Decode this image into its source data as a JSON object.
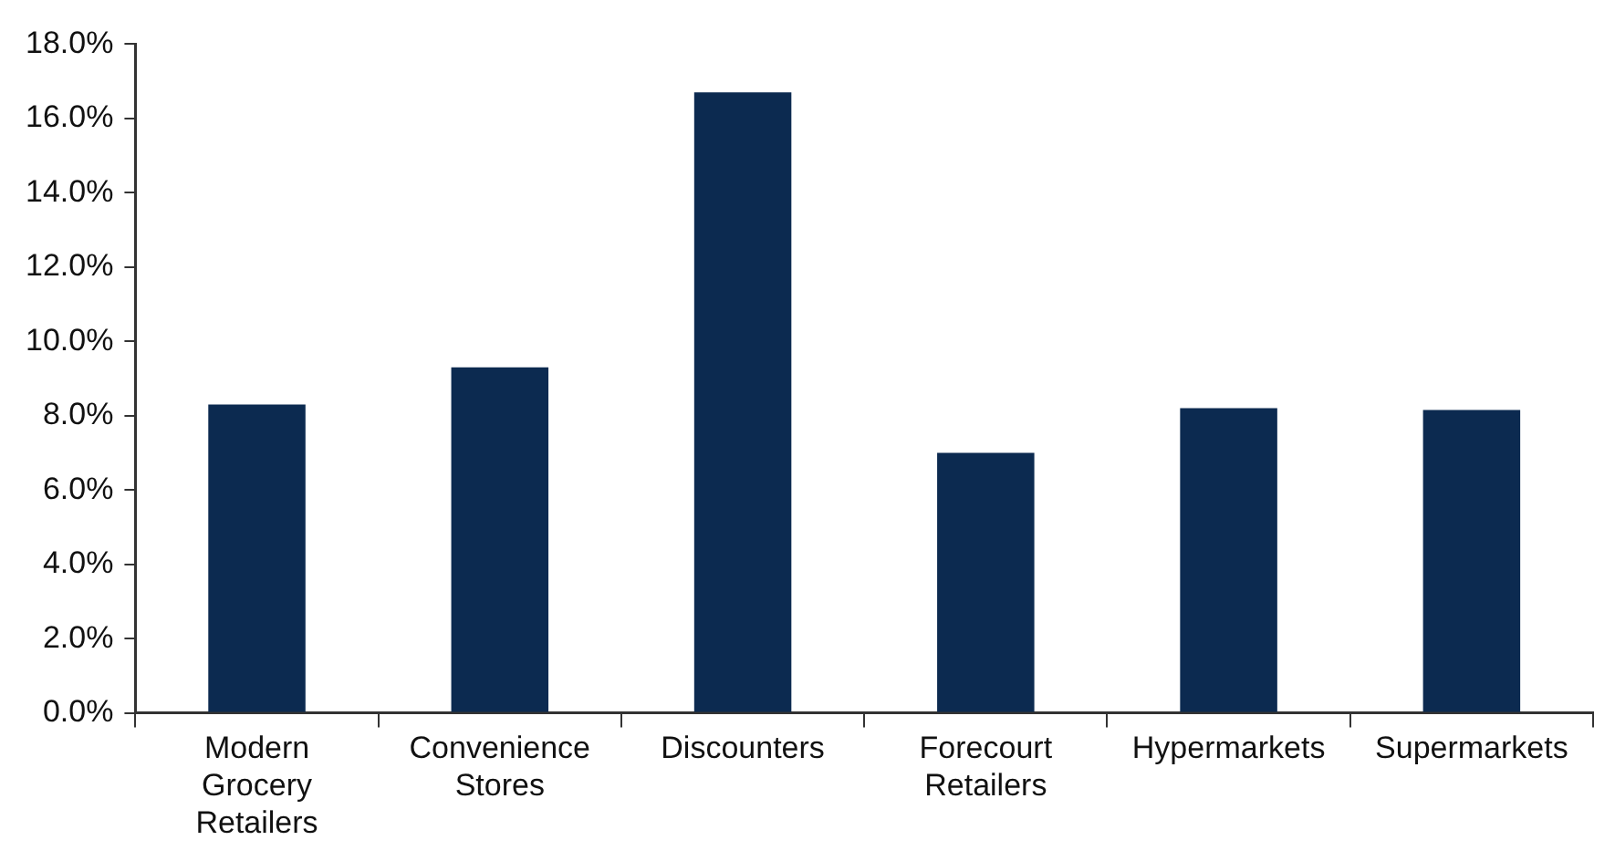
{
  "chart_data": {
    "type": "bar",
    "categories": [
      "Modern Grocery Retailers",
      "Convenience Stores",
      "Discounters",
      "Forecourt Retailers",
      "Hypermarkets",
      "Supermarkets"
    ],
    "values": [
      8.3,
      9.3,
      16.7,
      7.0,
      8.2,
      8.15
    ],
    "color": "#0c2a50",
    "ylim": [
      0,
      18
    ],
    "yticks": [
      {
        "value": 0,
        "label": "0.0%"
      },
      {
        "value": 2,
        "label": "2.0%"
      },
      {
        "value": 4,
        "label": "4.0%"
      },
      {
        "value": 6,
        "label": "6.0%"
      },
      {
        "value": 8,
        "label": "8.0%"
      },
      {
        "value": 10,
        "label": "10.0%"
      },
      {
        "value": 12,
        "label": "12.0%"
      },
      {
        "value": 14,
        "label": "14.0%"
      },
      {
        "value": 16,
        "label": "16.0%"
      },
      {
        "value": 18,
        "label": "18.0%"
      }
    ],
    "grid": false,
    "legend": false
  }
}
